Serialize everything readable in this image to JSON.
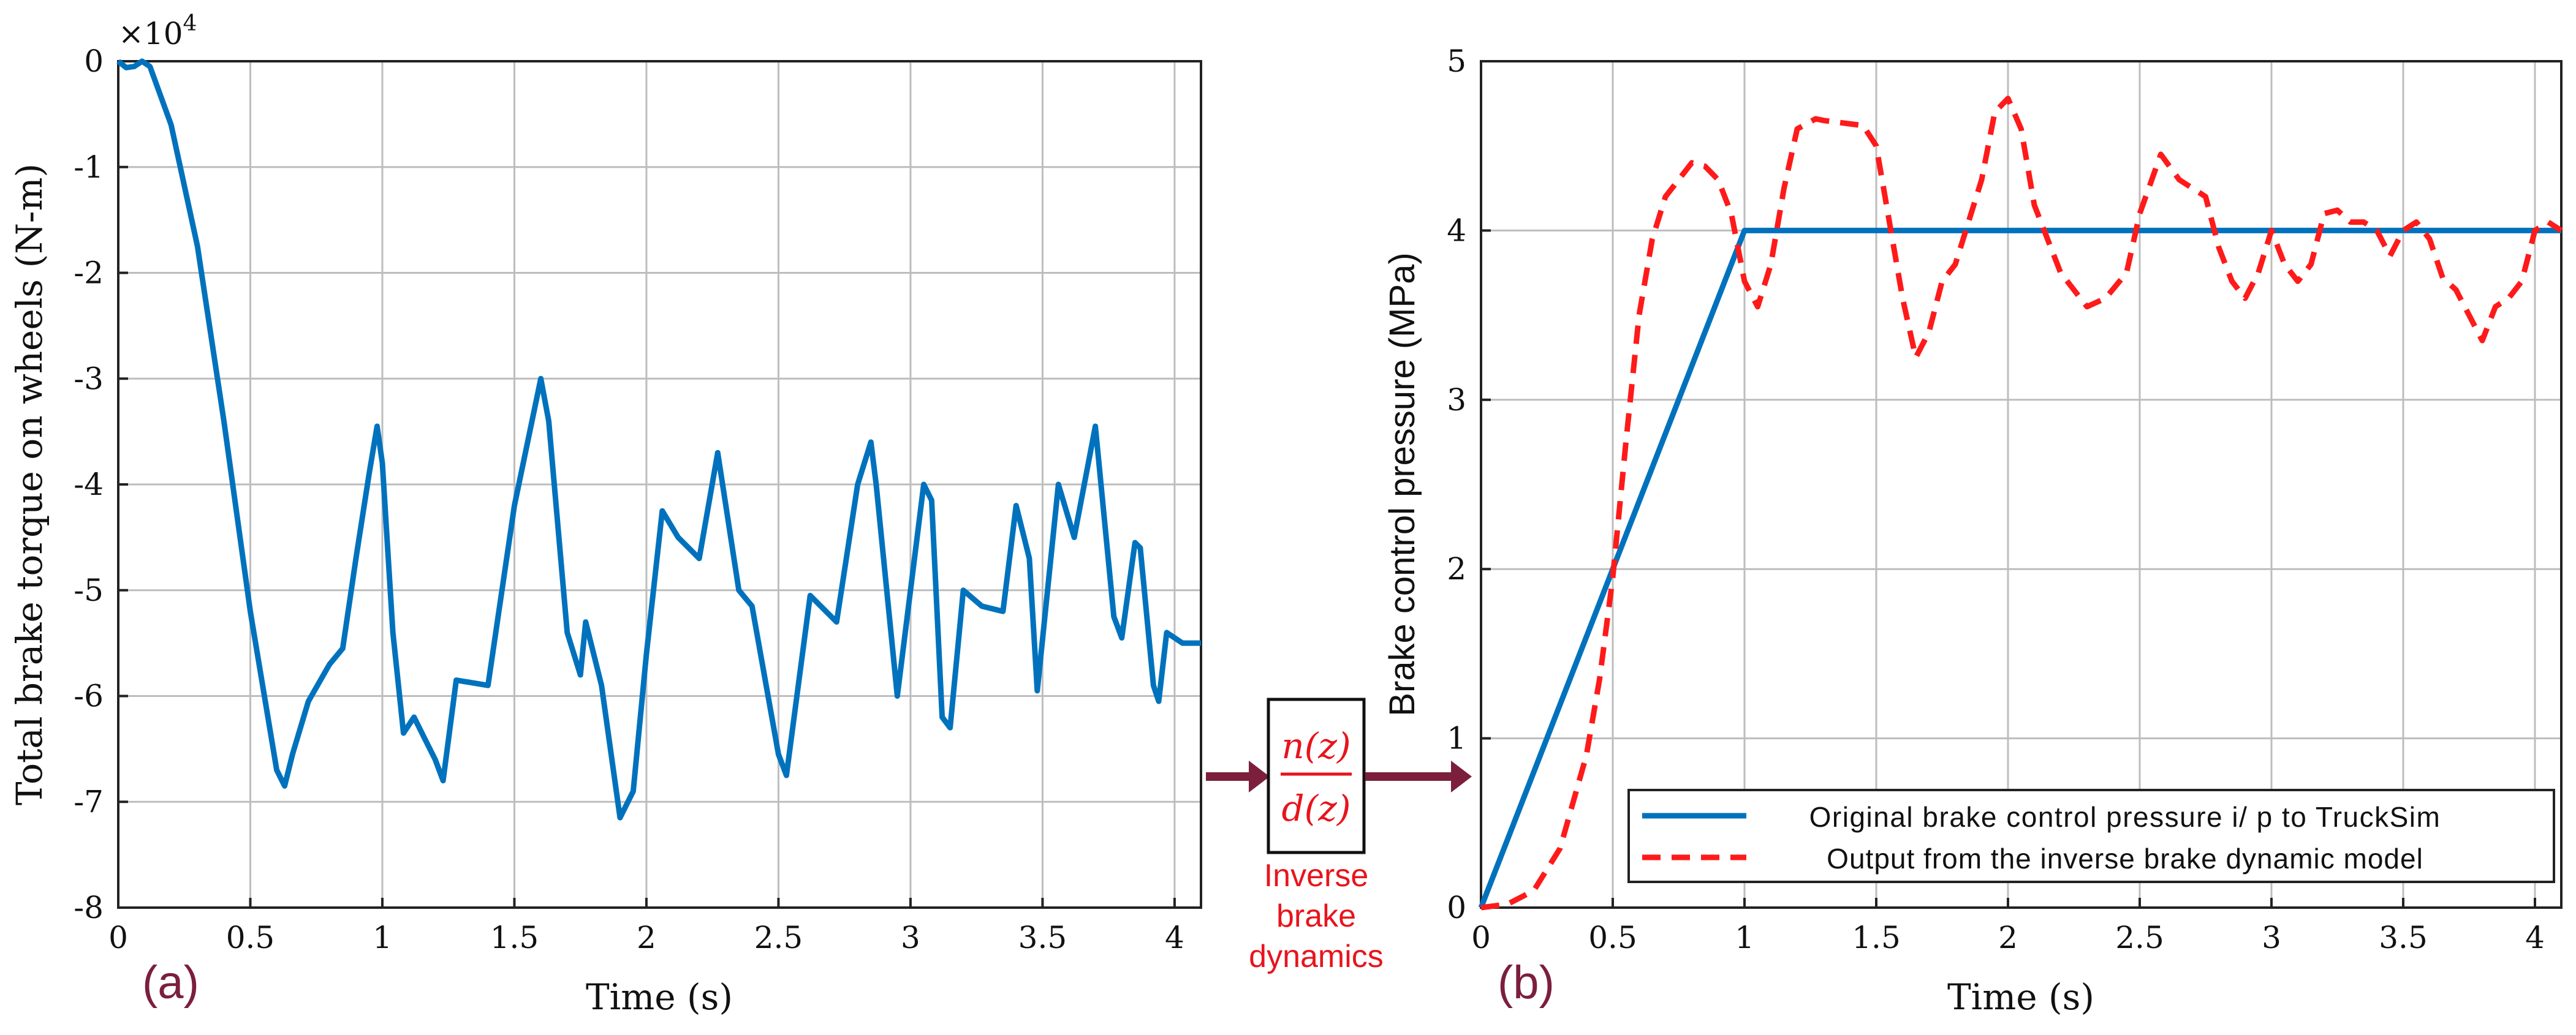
{
  "chart_data": [
    {
      "id": "a",
      "type": "line",
      "panel_label": "(a)",
      "title": "",
      "xlabel": "Time (s)",
      "ylabel": "Total brake torque on wheels (N-m)",
      "exponent_label": "×10",
      "exponent_power": "4",
      "xlim": [
        0,
        4.1
      ],
      "ylim": [
        -8,
        0
      ],
      "xticks": [
        0,
        0.5,
        1,
        1.5,
        2,
        2.5,
        3,
        3.5,
        4
      ],
      "xtick_labels": [
        "0",
        "0.5",
        "1",
        "1.5",
        "2",
        "2.5",
        "3",
        "3.5",
        "4"
      ],
      "yticks": [
        -8,
        -7,
        -6,
        -5,
        -4,
        -3,
        -2,
        -1,
        0
      ],
      "ytick_labels": [
        "-8",
        "-7",
        "-6",
        "-5",
        "-4",
        "-3",
        "-2",
        "-1",
        "0"
      ],
      "grid": true,
      "series": [
        {
          "name": "Total brake torque",
          "color": "#0072bd",
          "dash": "solid",
          "x": [
            0,
            0.03,
            0.06,
            0.09,
            0.12,
            0.2,
            0.3,
            0.4,
            0.5,
            0.6,
            0.63,
            0.66,
            0.72,
            0.8,
            0.85,
            0.9,
            0.95,
            0.98,
            1.0,
            1.04,
            1.08,
            1.12,
            1.16,
            1.2,
            1.23,
            1.28,
            1.4,
            1.5,
            1.6,
            1.63,
            1.7,
            1.75,
            1.77,
            1.83,
            1.9,
            1.95,
            2.0,
            2.06,
            2.12,
            2.2,
            2.27,
            2.35,
            2.4,
            2.5,
            2.53,
            2.62,
            2.72,
            2.8,
            2.85,
            2.87,
            2.95,
            3.05,
            3.08,
            3.12,
            3.15,
            3.2,
            3.27,
            3.35,
            3.4,
            3.45,
            3.48,
            3.56,
            3.62,
            3.7,
            3.77,
            3.8,
            3.85,
            3.87,
            3.92,
            3.94,
            3.97,
            4.0,
            4.03,
            4.06,
            4.1
          ],
          "y": [
            0,
            -0.06,
            -0.05,
            0.0,
            -0.05,
            -0.6,
            -1.75,
            -3.4,
            -5.2,
            -6.7,
            -6.85,
            -6.55,
            -6.05,
            -5.7,
            -5.55,
            -4.7,
            -3.9,
            -3.45,
            -3.8,
            -5.4,
            -6.35,
            -6.2,
            -6.4,
            -6.6,
            -6.8,
            -5.85,
            -5.9,
            -4.2,
            -3.0,
            -3.4,
            -5.4,
            -5.8,
            -5.3,
            -5.9,
            -7.15,
            -6.9,
            -5.6,
            -4.25,
            -4.5,
            -4.7,
            -3.7,
            -5.0,
            -5.15,
            -6.55,
            -6.75,
            -5.05,
            -5.3,
            -4.0,
            -3.6,
            -4.0,
            -6.0,
            -4.0,
            -4.15,
            -6.2,
            -6.3,
            -5.0,
            -5.15,
            -5.2,
            -4.2,
            -4.7,
            -5.95,
            -4.0,
            -4.5,
            -3.45,
            -5.25,
            -5.45,
            -4.55,
            -4.6,
            -5.9,
            -6.05,
            -5.4,
            -5.45,
            -5.5,
            -5.5,
            -5.5
          ]
        }
      ]
    },
    {
      "id": "b",
      "type": "line",
      "panel_label": "(b)",
      "title": "",
      "xlabel": "Time (s)",
      "ylabel": "Brake control pressure (MPa)",
      "xlim": [
        0,
        4.1
      ],
      "ylim": [
        0,
        5
      ],
      "xticks": [
        0,
        0.5,
        1,
        1.5,
        2,
        2.5,
        3,
        3.5,
        4
      ],
      "xtick_labels": [
        "0",
        "0.5",
        "1",
        "1.5",
        "2",
        "2.5",
        "3",
        "3.5",
        "4"
      ],
      "yticks": [
        0,
        1,
        2,
        3,
        4,
        5
      ],
      "ytick_labels": [
        "0",
        "1",
        "2",
        "3",
        "4",
        "5"
      ],
      "grid": true,
      "legend_position": "bottom-right",
      "series": [
        {
          "name": "Original brake control pressure i/ p to TruckSim",
          "color": "#0072bd",
          "dash": "solid",
          "x": [
            0,
            1.0,
            4.1
          ],
          "y": [
            0,
            4.0,
            4.0
          ]
        },
        {
          "name": "Output from the inverse brake dynamic model",
          "color": "#ff1a1a",
          "dash": "dashed",
          "x": [
            0,
            0.1,
            0.2,
            0.3,
            0.4,
            0.45,
            0.5,
            0.55,
            0.6,
            0.65,
            0.7,
            0.8,
            0.85,
            0.9,
            0.95,
            1.0,
            1.05,
            1.1,
            1.15,
            1.2,
            1.27,
            1.3,
            1.45,
            1.5,
            1.6,
            1.65,
            1.7,
            1.75,
            1.8,
            1.9,
            1.95,
            2.0,
            2.05,
            2.1,
            2.15,
            2.2,
            2.3,
            2.37,
            2.45,
            2.5,
            2.58,
            2.65,
            2.75,
            2.8,
            2.85,
            2.9,
            2.95,
            3.0,
            3.05,
            3.1,
            3.15,
            3.2,
            3.25,
            3.3,
            3.35,
            3.4,
            3.45,
            3.5,
            3.55,
            3.6,
            3.65,
            3.7,
            3.75,
            3.8,
            3.85,
            3.9,
            3.95,
            4.0,
            4.05,
            4.1
          ],
          "y": [
            0,
            0.02,
            0.1,
            0.35,
            0.9,
            1.35,
            1.95,
            2.75,
            3.5,
            3.95,
            4.2,
            4.4,
            4.38,
            4.3,
            4.1,
            3.7,
            3.55,
            3.8,
            4.25,
            4.6,
            4.66,
            4.65,
            4.62,
            4.5,
            3.6,
            3.25,
            3.4,
            3.7,
            3.8,
            4.3,
            4.7,
            4.78,
            4.6,
            4.15,
            3.95,
            3.75,
            3.55,
            3.6,
            3.75,
            4.1,
            4.45,
            4.3,
            4.2,
            3.9,
            3.7,
            3.6,
            3.75,
            4.0,
            3.8,
            3.7,
            3.8,
            4.1,
            4.12,
            4.05,
            4.05,
            4.0,
            3.85,
            4.0,
            4.05,
            3.95,
            3.72,
            3.65,
            3.5,
            3.35,
            3.55,
            3.6,
            3.7,
            4.0,
            4.05,
            4.0
          ]
        }
      ]
    }
  ],
  "block": {
    "numerator": "n(z)",
    "denominator": "d(z)",
    "caption_lines": [
      "Inverse",
      "brake",
      "dynamics"
    ]
  },
  "colors": {
    "arrow": "#7b1f3c",
    "block_text": "#e8141c",
    "series_blue": "#0072bd",
    "series_red": "#ff1a1a"
  }
}
